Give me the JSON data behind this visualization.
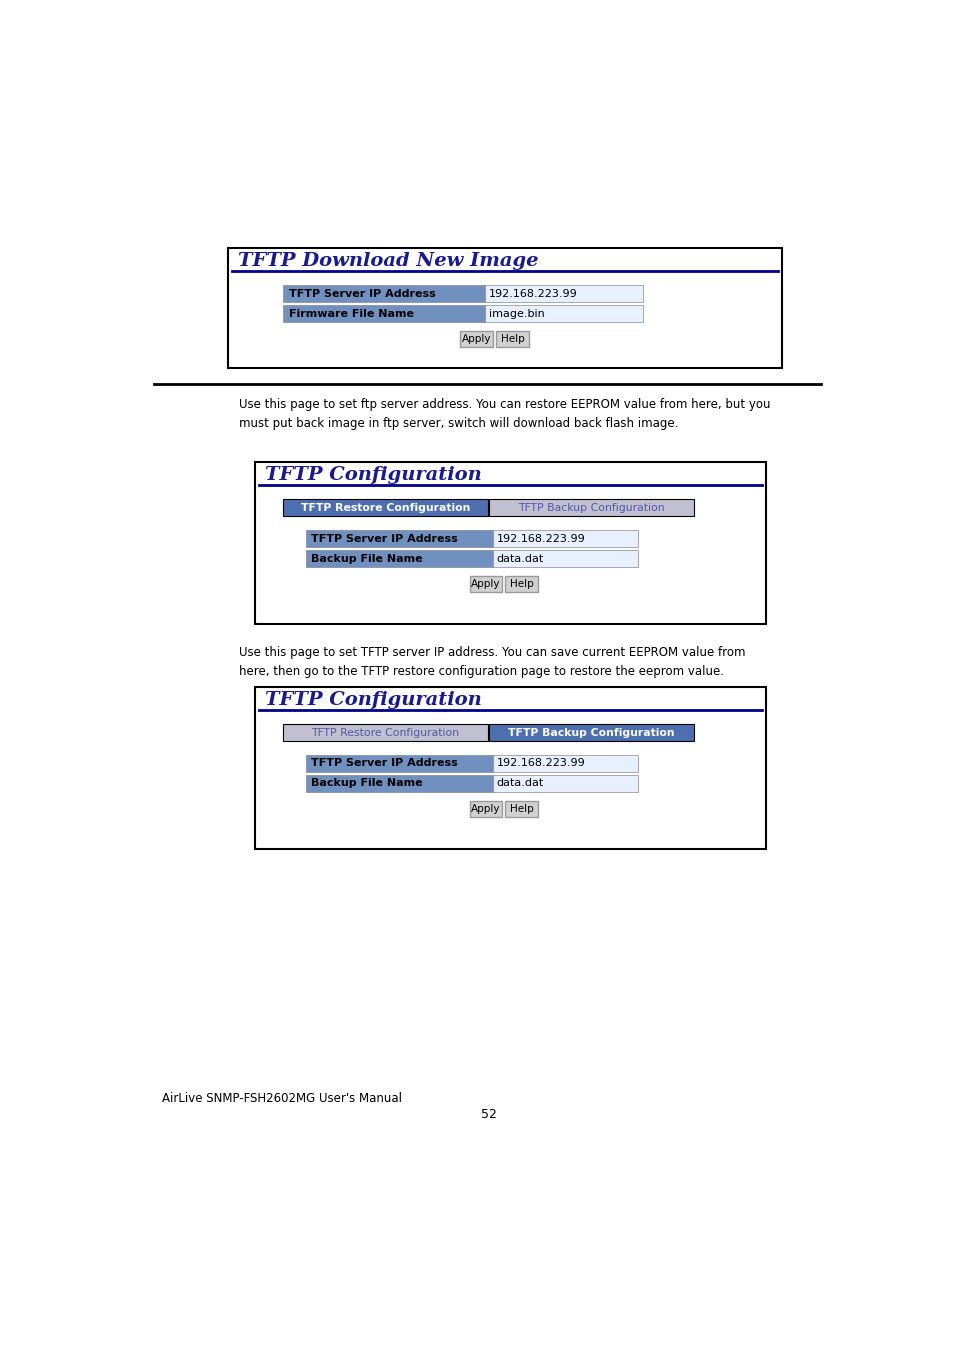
{
  "bg_color": "#ffffff",
  "page_width": 9.54,
  "page_height": 13.5,
  "dpi": 100,
  "section1": {
    "title": "TFTP Download New Image",
    "title_color": "#1a1a8c",
    "row1_label": "TFTP Server IP Address",
    "row1_value": "192.168.223.99",
    "row2_label": "Firmware File Name",
    "row2_value": "image.bin"
  },
  "text1": "Use this page to set ftp server address. You can restore EEPROM value from here, but you\nmust put back image in ftp server, switch will download back flash image.",
  "section2": {
    "title": "TFTP Configuration",
    "title_color": "#1a1a8c",
    "tab1": "TFTP Restore Configuration",
    "tab2": "TFTP Backup Configuration",
    "active_tab": 0,
    "row1_label": "TFTP Server IP Address",
    "row1_value": "192.168.223.99",
    "row2_label": "Backup File Name",
    "row2_value": "data.dat"
  },
  "text2": "Use this page to set TFTP server IP address. You can save current EEPROM value from\nhere, then go to the TFTP restore configuration page to restore the eeprom value.",
  "section3": {
    "title": "TFTP Configuration",
    "title_color": "#1a1a8c",
    "tab1": "TFTP Restore Configuration",
    "tab2": "TFTP Backup Configuration",
    "active_tab": 1,
    "row1_label": "TFTP Server IP Address",
    "row1_value": "192.168.223.99",
    "row2_label": "Backup File Name",
    "row2_value": "data.dat"
  },
  "footer_left": "AirLive SNMP-FSH2602MG User's Manual",
  "footer_center": "52",
  "colors": {
    "box_border": "#000000",
    "box_bg": "#ffffff",
    "divider": "#00008b",
    "tab_active_bg": "#4e6faf",
    "tab_active_text": "#ffffff",
    "tab_inactive_bg": "#c0c0d0",
    "tab_inactive_text": "#5555aa",
    "field_label_bg": "#7090c0",
    "field_label_text": "#000000",
    "field_input_bg": "#e8f0ff",
    "button_bg": "#d0d0d0",
    "button_border": "#999999",
    "button_text": "#000000",
    "body_text": "#000000",
    "footer_text": "#000000",
    "separator_line": "#000000"
  }
}
